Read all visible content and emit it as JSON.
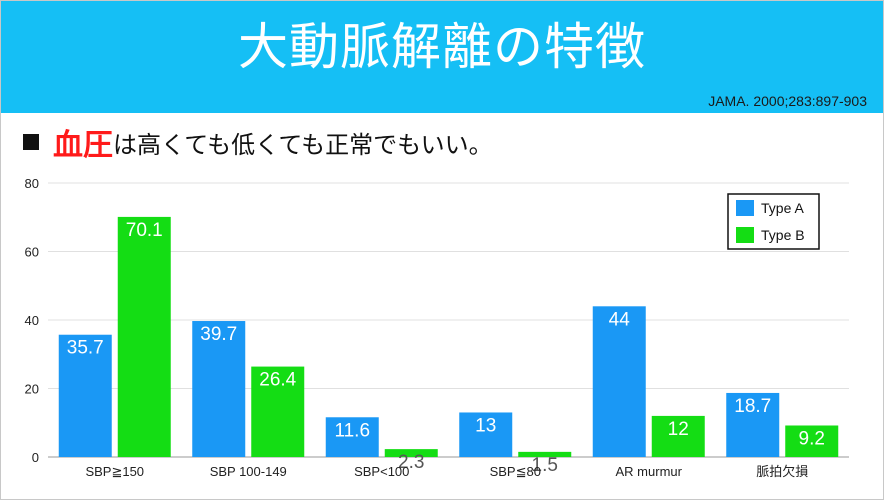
{
  "header": {
    "title": "大動脈解離の特徴",
    "citation": "JAMA. 2000;283:897-903"
  },
  "bullet": {
    "highlight": "血圧",
    "rest": "は高くても低くても正常でもいい。"
  },
  "colors": {
    "header_bg": "#15bff5",
    "type_a": "#1a98f5",
    "type_b": "#14dd14",
    "highlight": "#ff1a1a"
  },
  "chart_data": {
    "type": "bar",
    "title": "",
    "xlabel": "",
    "ylabel": "",
    "categories": [
      "SBP≧150",
      "SBP 100-149",
      "SBP<100",
      "SBP≦80",
      "AR murmur",
      "脈拍欠損"
    ],
    "series": [
      {
        "name": "Type A",
        "values": [
          35.7,
          39.7,
          11.6,
          13,
          44,
          18.7
        ],
        "labels": [
          "35.7",
          "39.7",
          "11.6",
          "13",
          "44",
          "18.7"
        ]
      },
      {
        "name": "Type B",
        "values": [
          70.1,
          26.4,
          2.3,
          1.5,
          12,
          9.2
        ],
        "labels": [
          "70.1",
          "26.4",
          "2.3",
          "1.5",
          "12",
          "9.2"
        ]
      }
    ],
    "ylim": [
      0,
      80
    ],
    "yticks": [
      0,
      20,
      40,
      60,
      80
    ],
    "grid": true,
    "legend": "top-right"
  }
}
